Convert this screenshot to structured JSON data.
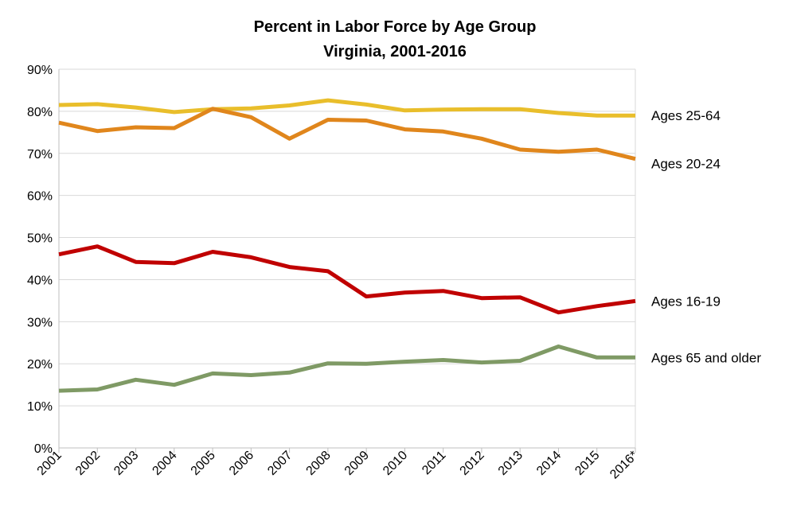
{
  "chart_data": {
    "type": "line",
    "title": "Percent in Labor Force by Age Group",
    "subtitle": "Virginia, 2001-2016",
    "xlabel": "",
    "ylabel": "",
    "categories": [
      "2001",
      "2002",
      "2003",
      "2004",
      "2005",
      "2006",
      "2007",
      "2008",
      "2009",
      "2010",
      "2011",
      "2012",
      "2013",
      "2014",
      "2015",
      "2016*"
    ],
    "ylim": [
      0,
      90
    ],
    "yticks": [
      "0%",
      "10%",
      "20%",
      "30%",
      "40%",
      "50%",
      "60%",
      "70%",
      "80%",
      "90%"
    ],
    "grid": true,
    "legend": "direct labels at right end of lines",
    "series": [
      {
        "name": "Ages 25-64",
        "color": "#E9BE2B",
        "values": [
          81.5,
          81.7,
          80.9,
          79.8,
          80.5,
          80.7,
          81.4,
          82.6,
          81.6,
          80.2,
          80.4,
          80.5,
          80.5,
          79.6,
          79.0,
          79.0
        ]
      },
      {
        "name": "Ages 20-24",
        "color": "#E0861C",
        "values": [
          77.3,
          75.3,
          76.2,
          76.0,
          80.6,
          78.6,
          73.5,
          78.0,
          77.8,
          75.7,
          75.2,
          73.5,
          70.9,
          70.4,
          70.9,
          68.7
        ]
      },
      {
        "name": "Ages 16-19",
        "color": "#C00000",
        "values": [
          46.0,
          47.9,
          44.2,
          43.9,
          46.6,
          45.3,
          43.0,
          42.0,
          36.0,
          36.9,
          37.3,
          35.6,
          35.8,
          32.2,
          33.7,
          34.9
        ]
      },
      {
        "name": "Ages 65 and older",
        "color": "#7F9A65",
        "values": [
          13.6,
          13.9,
          16.2,
          15.0,
          17.7,
          17.3,
          17.9,
          20.1,
          20.0,
          20.5,
          20.9,
          20.3,
          20.7,
          24.1,
          21.5,
          21.5
        ]
      }
    ]
  }
}
